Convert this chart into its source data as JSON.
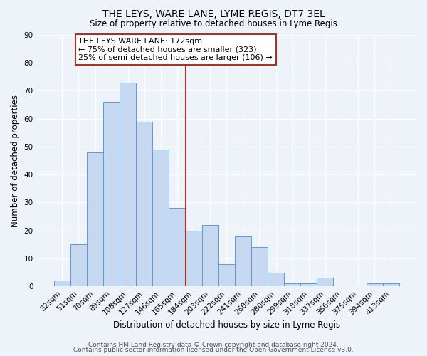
{
  "title": "THE LEYS, WARE LANE, LYME REGIS, DT7 3EL",
  "subtitle": "Size of property relative to detached houses in Lyme Regis",
  "xlabel": "Distribution of detached houses by size in Lyme Regis",
  "ylabel": "Number of detached properties",
  "bar_labels": [
    "32sqm",
    "51sqm",
    "70sqm",
    "89sqm",
    "108sqm",
    "127sqm",
    "146sqm",
    "165sqm",
    "184sqm",
    "203sqm",
    "222sqm",
    "241sqm",
    "260sqm",
    "280sqm",
    "299sqm",
    "318sqm",
    "337sqm",
    "356sqm",
    "375sqm",
    "394sqm",
    "413sqm"
  ],
  "bar_values": [
    2,
    15,
    48,
    66,
    73,
    59,
    49,
    28,
    20,
    22,
    8,
    18,
    14,
    5,
    1,
    1,
    3,
    0,
    0,
    1,
    1
  ],
  "bar_color": "#c5d8f0",
  "bar_edge_color": "#5b9bd5",
  "ylim": [
    0,
    90
  ],
  "yticks": [
    0,
    10,
    20,
    30,
    40,
    50,
    60,
    70,
    80,
    90
  ],
  "vline_x_index": 7.5,
  "vline_color": "#a93226",
  "annotation_title": "THE LEYS WARE LANE: 172sqm",
  "annotation_line1": "← 75% of detached houses are smaller (323)",
  "annotation_line2": "25% of semi-detached houses are larger (106) →",
  "footer_line1": "Contains HM Land Registry data © Crown copyright and database right 2024.",
  "footer_line2": "Contains public sector information licensed under the Open Government Licence v3.0.",
  "bg_color": "#eef2f9",
  "plot_bg_color": "#eef2f9",
  "grid_color": "#ffffff",
  "title_fontsize": 10,
  "subtitle_fontsize": 8.5,
  "axis_label_fontsize": 8.5,
  "tick_fontsize": 7.5,
  "footer_fontsize": 6.5,
  "annotation_fontsize": 8
}
